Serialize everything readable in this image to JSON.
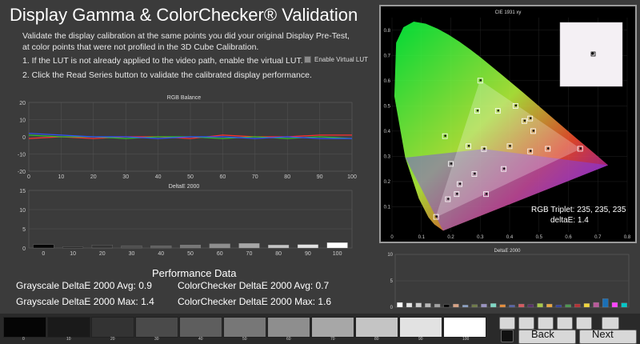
{
  "title": "Display Gamma & ColorChecker® Validation",
  "instructions": "Validate the display calibration at the same points you did your original Display Pre-Test, at color points that were not profiled in the 3D Cube Calibration.",
  "step1": "1.  If the LUT is not already applied to the video path, enable the virtual LUT.",
  "step2": "2.  Click the Read Series button to validate the calibrated display performance.",
  "lut_checkbox_label": "Enable Virtual LUT",
  "rgb_balance": {
    "title": "RGB Balance",
    "yticks": [
      "20",
      "10",
      "0",
      "-10",
      "-20"
    ],
    "xticks": [
      "0",
      "10",
      "20",
      "30",
      "40",
      "50",
      "60",
      "70",
      "80",
      "90",
      "100"
    ]
  },
  "deltae_chart": {
    "title": "DeltaE 2000",
    "yticks": [
      "15",
      "10",
      "5",
      "0"
    ],
    "xticks": [
      "0",
      "10",
      "20",
      "30",
      "40",
      "50",
      "60",
      "70",
      "80",
      "90",
      "100"
    ]
  },
  "cie": {
    "title": "CIE 1931 xy",
    "yticks": [
      "0.8",
      "0.7",
      "0.6",
      "0.5",
      "0.4",
      "0.3",
      "0.2",
      "0.1"
    ],
    "xticks": [
      "0",
      "0.1",
      "0.2",
      "0.3",
      "0.4",
      "0.5",
      "0.6",
      "0.7",
      "0.8"
    ]
  },
  "rgb_triplet": "RGB Triplet: 235, 235, 235",
  "deltae_value": "deltaE: 1.4",
  "cc_deltae_chart": {
    "title": "DeltaE 2000",
    "yticks": [
      "10",
      "5",
      "0"
    ]
  },
  "performance": {
    "title": "Performance Data",
    "gray_avg": "Grayscale DeltaE 2000 Avg:  0.9",
    "gray_max": "Grayscale DeltaE 2000 Max:  1.4",
    "cc_avg": "ColorChecker DeltaE 2000 Avg:  0.7",
    "cc_max": "ColorChecker DeltaE 2000 Max:  1.6"
  },
  "patches": {
    "labels": [
      "0",
      "10",
      "20",
      "30",
      "40",
      "50",
      "60",
      "70",
      "80",
      "90",
      "100"
    ],
    "colors": [
      "#050505",
      "#1a1a1a",
      "#333333",
      "#4a4a4a",
      "#5e5e5e",
      "#777777",
      "#8e8e8e",
      "#a7a7a7",
      "#c4c4c4",
      "#e2e2e2",
      "#ffffff"
    ]
  },
  "nav": {
    "back": "Back",
    "next": "Next"
  },
  "chart_data": [
    {
      "type": "line",
      "title": "RGB Balance",
      "x": [
        0,
        10,
        20,
        30,
        40,
        50,
        60,
        70,
        80,
        90,
        100
      ],
      "ylim": [
        -20,
        20
      ],
      "series": [
        {
          "color": "#ff3030",
          "values": [
            -1,
            0,
            -1,
            0,
            0,
            -1,
            1,
            0,
            0,
            1,
            1
          ]
        },
        {
          "color": "#30c030",
          "values": [
            1,
            0,
            0,
            -1,
            0,
            0,
            -1,
            0,
            -1,
            0,
            -1
          ]
        },
        {
          "color": "#3050ff",
          "values": [
            2,
            1,
            0,
            0,
            -1,
            0,
            0,
            -1,
            0,
            -1,
            -1
          ]
        }
      ]
    },
    {
      "type": "bar",
      "title": "DeltaE 2000",
      "categories": [
        "0",
        "10",
        "20",
        "30",
        "40",
        "50",
        "60",
        "70",
        "80",
        "90",
        "100"
      ],
      "values": [
        0.9,
        0.3,
        0.8,
        0.6,
        0.6,
        0.8,
        1.1,
        1.2,
        0.8,
        0.9,
        1.4
      ],
      "ylim": [
        0,
        15
      ]
    },
    {
      "type": "scatter",
      "title": "CIE 1931 xy",
      "xlim": [
        0,
        0.8
      ],
      "ylim": [
        0,
        0.85
      ],
      "targets": [
        [
          0.64,
          0.33
        ],
        [
          0.3,
          0.6
        ],
        [
          0.15,
          0.06
        ],
        [
          0.3127,
          0.329
        ],
        [
          0.2,
          0.27
        ],
        [
          0.29,
          0.48
        ],
        [
          0.22,
          0.15
        ],
        [
          0.42,
          0.5
        ],
        [
          0.32,
          0.15
        ],
        [
          0.45,
          0.44
        ],
        [
          0.4,
          0.34
        ],
        [
          0.26,
          0.34
        ],
        [
          0.18,
          0.38
        ],
        [
          0.47,
          0.45
        ],
        [
          0.48,
          0.4
        ],
        [
          0.38,
          0.25
        ],
        [
          0.53,
          0.33
        ],
        [
          0.47,
          0.32
        ],
        [
          0.28,
          0.23
        ],
        [
          0.36,
          0.48
        ],
        [
          0.23,
          0.19
        ],
        [
          0.19,
          0.13
        ]
      ]
    },
    {
      "type": "bar",
      "title": "DeltaE 2000",
      "values": [
        0.9,
        0.8,
        0.8,
        0.7,
        0.6,
        0.5,
        0.6,
        0.4,
        0.5,
        0.6,
        0.7,
        0.5,
        0.4,
        0.6,
        0.5,
        0.7,
        0.6,
        0.4,
        0.5,
        0.6,
        0.7,
        0.9,
        1.6,
        0.9,
        0.8
      ],
      "colors": [
        "#ffffff",
        "#e6e6e6",
        "#cfcfcf",
        "#b9b9b9",
        "#a3a3a3",
        "#000000",
        "#d7a284",
        "#8ba1c7",
        "#6e7a48",
        "#9993c2",
        "#7fd8c5",
        "#e58d3a",
        "#5462a9",
        "#d5595f",
        "#5b316b",
        "#a8c948",
        "#eaa640",
        "#3040a0",
        "#4c9850",
        "#b43135",
        "#f0d53c",
        "#b85a9a",
        "#1b70b6",
        "#ff44ff",
        "#00c8c8"
      ],
      "ylim": [
        0,
        10
      ]
    }
  ]
}
